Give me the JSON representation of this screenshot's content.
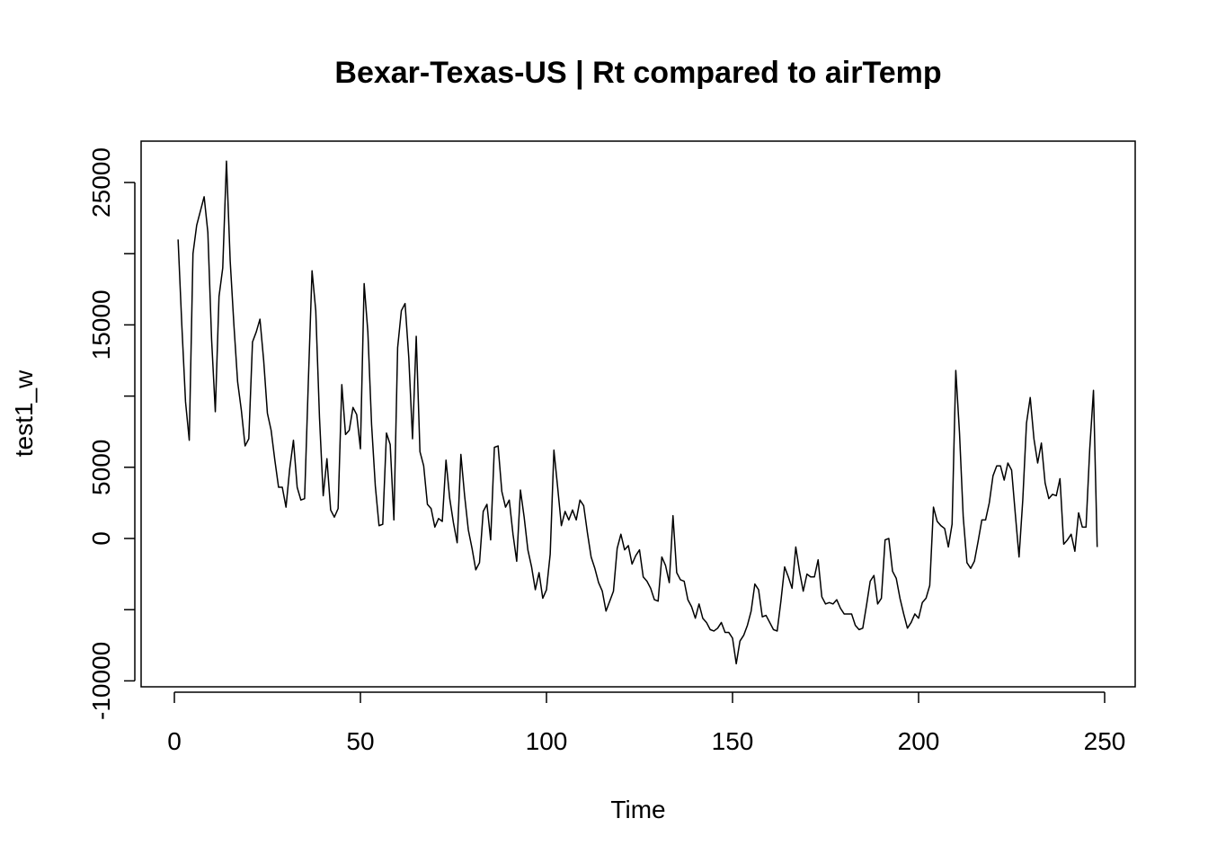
{
  "chart_data": {
    "type": "line",
    "title": "Bexar-Texas-US | Rt compared to airTemp",
    "xlabel": "Time",
    "ylabel": "test1_w",
    "xlim": [
      0,
      250
    ],
    "ylim": [
      -10000,
      25000
    ],
    "x_ticks": [
      "0",
      "50",
      "100",
      "150",
      "200",
      "250"
    ],
    "y_ticks": [
      "-10000",
      "5000",
      "15000",
      "25000"
    ],
    "y_ticks_unlabeled": [
      -5000,
      0,
      10000,
      20000
    ],
    "y_tick_labels_all": [
      "-10000",
      "",
      "0",
      "5000",
      "",
      "15000",
      "",
      "25000"
    ],
    "grid": false,
    "series": [
      {
        "color": "#000000",
        "x_start": 1,
        "values": [
          21000,
          15000,
          9600,
          6900,
          20000,
          22000,
          23000,
          24000,
          21500,
          14000,
          8900,
          17000,
          19000,
          26500,
          19500,
          15000,
          11000,
          9000,
          6500,
          7000,
          13800,
          14500,
          15400,
          12500,
          8800,
          7600,
          5500,
          3600,
          3600,
          2200,
          4900,
          6900,
          3600,
          2700,
          2800,
          11000,
          18800,
          16000,
          8500,
          3000,
          5600,
          2000,
          1500,
          2100,
          10800,
          7300,
          7600,
          9200,
          8700,
          6300,
          17900,
          14500,
          8000,
          3700,
          900,
          1000,
          7400,
          6600,
          1300,
          13400,
          16000,
          16500,
          12700,
          7000,
          14200,
          6100,
          5100,
          2400,
          2100,
          800,
          1400,
          1200,
          5500,
          2800,
          1100,
          -300,
          5900,
          3000,
          600,
          -700,
          -2200,
          -1700,
          1900,
          2400,
          -100,
          6400,
          6500,
          3300,
          2200,
          2700,
          300,
          -1600,
          3400,
          1500,
          -800,
          -2000,
          -3600,
          -2400,
          -4200,
          -3600,
          -1100,
          6200,
          3600,
          900,
          1900,
          1300,
          2000,
          1300,
          2700,
          2300,
          400,
          -1300,
          -2100,
          -3100,
          -3700,
          -5100,
          -4400,
          -3700,
          -700,
          300,
          -800,
          -500,
          -1800,
          -1200,
          -800,
          -2700,
          -3000,
          -3500,
          -4300,
          -4400,
          -1300,
          -1900,
          -3100,
          1600,
          -2400,
          -2900,
          -3000,
          -4300,
          -4800,
          -5600,
          -4600,
          -5600,
          -5900,
          -6400,
          -6500,
          -6300,
          -5900,
          -6600,
          -6600,
          -7000,
          -8800,
          -7200,
          -6800,
          -6100,
          -5100,
          -3200,
          -3600,
          -5500,
          -5400,
          -5900,
          -6400,
          -6500,
          -4400,
          -2000,
          -2700,
          -3500,
          -600,
          -2300,
          -3700,
          -2500,
          -2700,
          -2700,
          -1500,
          -4100,
          -4600,
          -4500,
          -4600,
          -4300,
          -4900,
          -5300,
          -5300,
          -5300,
          -6100,
          -6400,
          -6300,
          -4700,
          -3000,
          -2600,
          -4600,
          -4200,
          -100,
          0,
          -2300,
          -2800,
          -4200,
          -5300,
          -6300,
          -5900,
          -5300,
          -5600,
          -4500,
          -4200,
          -3300,
          2200,
          1200,
          900,
          700,
          -600,
          1000,
          11800,
          7400,
          1500,
          -1700,
          -2100,
          -1600,
          -200,
          1300,
          1300,
          2500,
          4400,
          5100,
          5100,
          4100,
          5300,
          4800,
          1700,
          -1300,
          2700,
          8100,
          9900,
          7000,
          5300,
          6700,
          3900,
          2800,
          3100,
          3000,
          4200,
          -400,
          -100,
          300,
          -900,
          1800,
          800,
          800,
          6300,
          10400,
          -600
        ]
      }
    ]
  }
}
